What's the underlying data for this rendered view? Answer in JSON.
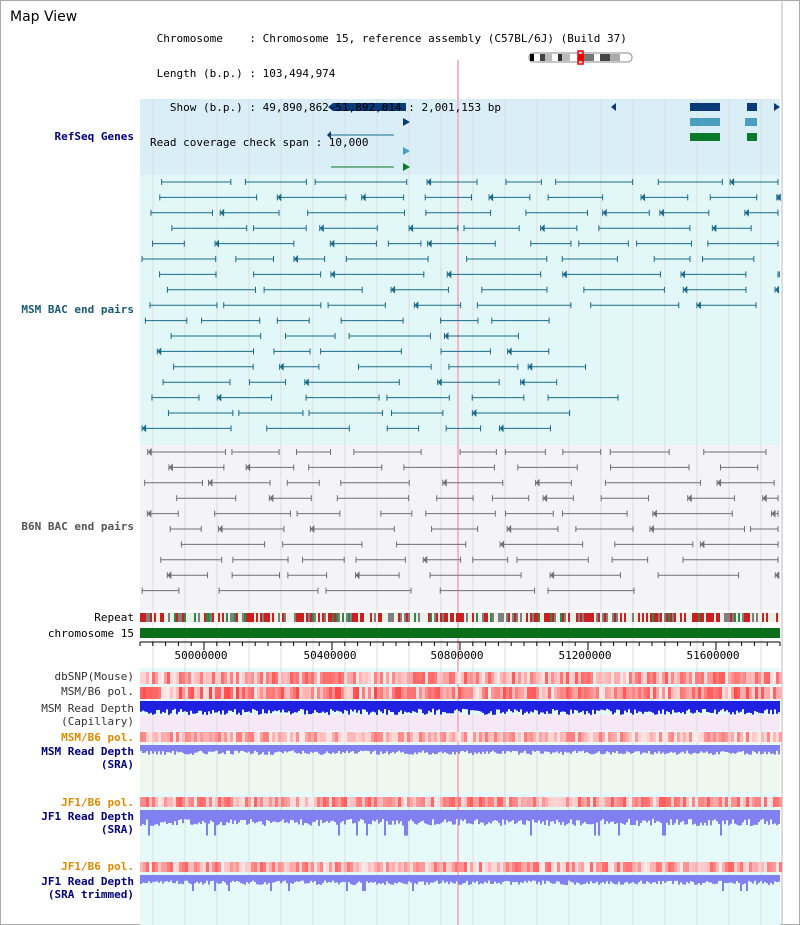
{
  "header": {
    "title": "Map View",
    "info_lines": [
      " Chromosome    : Chromosome 15, reference assembly (C57BL/6J) (Build 37)",
      " Length (b.p.) : 103,494,974",
      "   Show (b.p.) : 49,890,862-51,892,014 : 2,001,153 bp",
      "Read coverage check span : 10,000"
    ]
  },
  "tracks": {
    "refseq": "RefSeq Genes",
    "msm_bac": "MSM BAC end pairs",
    "b6n_bac": "B6N BAC end pairs",
    "repeat": "Repeat",
    "chromosome": "chromosome 15",
    "dbsnp": "dbSNP(Mouse)",
    "msm_b6_pol_1": "MSM/B6 pol.",
    "msm_depth_cap_1": "MSM Read Depth",
    "msm_depth_cap_2": "(Capillary)",
    "msm_b6_pol_2": "MSM/B6 pol.",
    "msm_depth_sra_1": "MSM Read Depth",
    "msm_depth_sra_2": "(SRA)",
    "jf1_pol_1": "JF1/B6 pol.",
    "jf1_depth_sra_1": "JF1 Read Depth",
    "jf1_depth_sra_2": "(SRA)",
    "jf1_pol_2": "JF1/B6 pol.",
    "jf1_depth_trim_1": "JF1 Read Depth",
    "jf1_depth_trim_2": "(SRA trimmed)"
  },
  "axis": {
    "ticks": [
      "50000000",
      "50400000",
      "50800000",
      "51200000",
      "51600000"
    ]
  },
  "colors": {
    "refseq_bg": "#daeef8",
    "msm_bg": "#e2f8f8",
    "b6n_bg": "#f3f3f8",
    "gene_dark": "#0a3a78",
    "gene_mid": "#4a9ec0",
    "gene_green": "#0a7a2a",
    "bac_msm": "#1a6a8a",
    "bac_b6n": "#707070",
    "chrom_green": "#0a6e1a",
    "depth_blue": "#2020e0",
    "depth_light": "#8080f0",
    "accent_label_blue": "#000080",
    "accent_label_orange": "#e08a00"
  }
}
